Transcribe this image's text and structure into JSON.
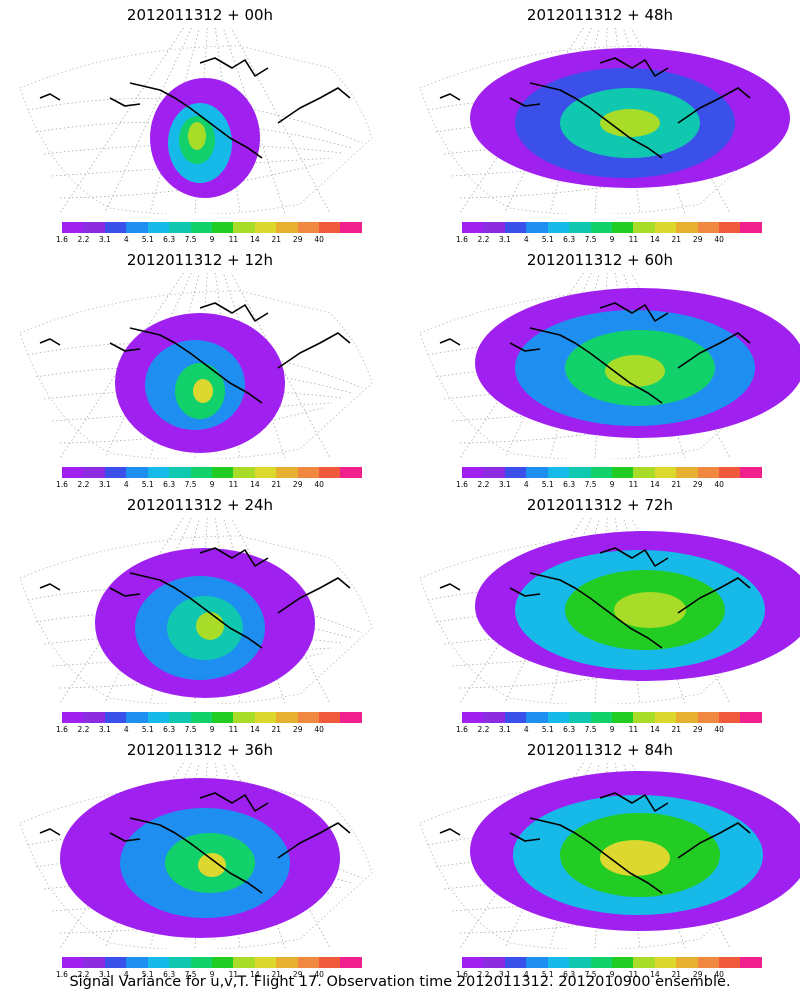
{
  "caption": "Signal Variance for u,v,T. Flight 17. Observation time 2012011312. 2012010900 ensemble.",
  "colorbar": {
    "labels": [
      "1.6",
      "2.2",
      "3.1",
      "4",
      "5.1",
      "6.3",
      "7.5",
      "9",
      "11",
      "14",
      "21",
      "29",
      "40"
    ],
    "colors": [
      "#a020f0",
      "#8c2be0",
      "#3a50e8",
      "#1e8ff0",
      "#17b9e8",
      "#10c8b0",
      "#12d06a",
      "#22cc22",
      "#a8dc28",
      "#dcd830",
      "#e8b030",
      "#f08840",
      "#f05a3c",
      "#f0208c"
    ]
  },
  "panels": [
    {
      "id": "p00",
      "title": "2012011312 + 00h"
    },
    {
      "id": "p48",
      "title": "2012011312 + 48h"
    },
    {
      "id": "p12",
      "title": "2012011312 + 12h"
    },
    {
      "id": "p60",
      "title": "2012011312 + 60h"
    },
    {
      "id": "p24",
      "title": "2012011312 + 24h"
    },
    {
      "id": "p72",
      "title": "2012011312 + 72h"
    },
    {
      "id": "p36",
      "title": "2012011312 + 36h"
    },
    {
      "id": "p84",
      "title": "2012011312 + 84h"
    }
  ]
}
